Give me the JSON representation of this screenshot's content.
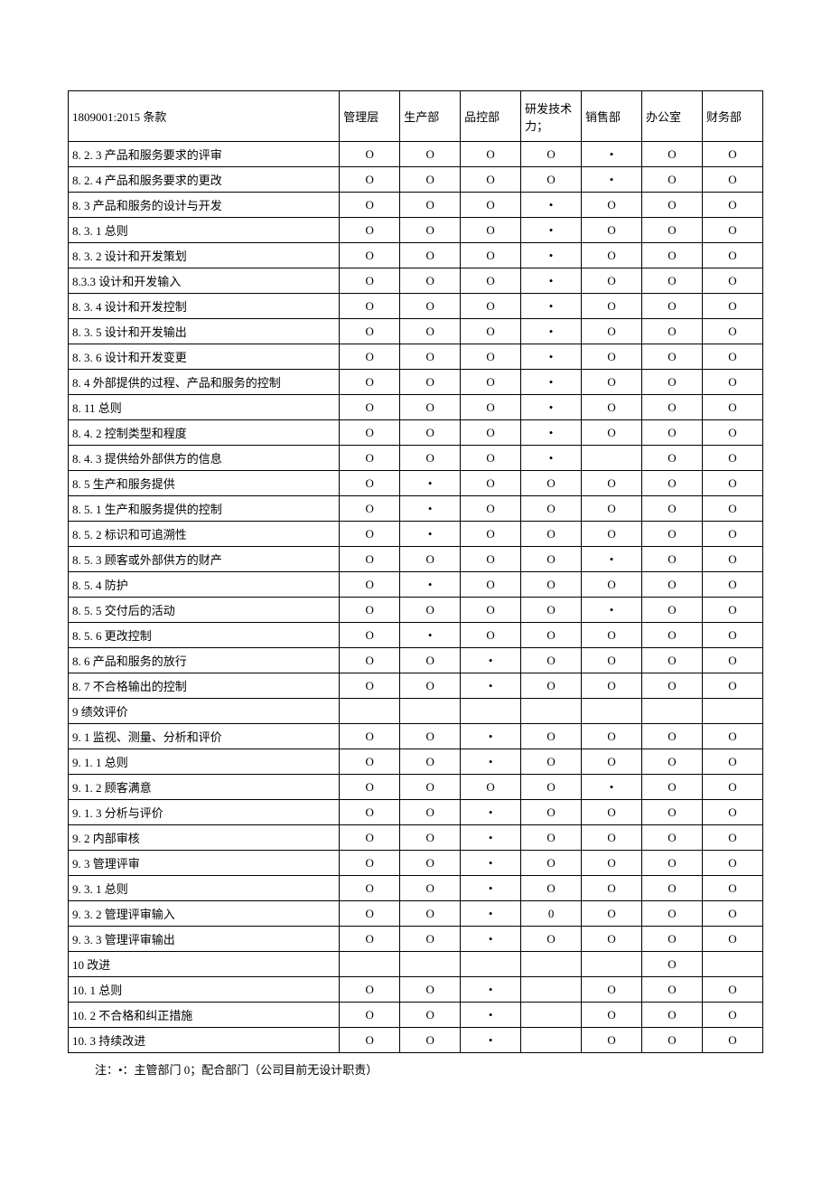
{
  "table": {
    "headers": [
      "1809001:2015 条款",
      "管理层",
      "生产部",
      "品控部",
      "研发技术力；",
      "销售部",
      "办公室",
      "财务部"
    ],
    "rows": [
      {
        "label": "8. 2. 3 产品和服务要求的评审",
        "cells": [
          "O",
          "O",
          "O",
          "O",
          "•",
          "O",
          "O"
        ]
      },
      {
        "label": "8. 2. 4 产品和服务要求的更改",
        "cells": [
          "O",
          "O",
          "O",
          "O",
          "•",
          "O",
          "O"
        ]
      },
      {
        "label": "8. 3 产品和服务的设计与开发",
        "cells": [
          "O",
          "O",
          "O",
          "•",
          "O",
          "O",
          "O"
        ]
      },
      {
        "label": "8. 3. 1 总则",
        "cells": [
          "O",
          "O",
          "O",
          "•",
          "O",
          "O",
          "O"
        ]
      },
      {
        "label": "8. 3. 2 设计和开发策划",
        "cells": [
          "O",
          "O",
          "O",
          "•",
          "O",
          "O",
          "O"
        ]
      },
      {
        "label": "8.3.3 设计和开发输入",
        "cells": [
          "O",
          "O",
          "O",
          "•",
          "O",
          "O",
          "O"
        ]
      },
      {
        "label": "8. 3. 4 设计和开发控制",
        "cells": [
          "O",
          "O",
          "O",
          "•",
          "O",
          "O",
          "O"
        ]
      },
      {
        "label": "8. 3. 5 设计和开发输出",
        "cells": [
          "O",
          "O",
          "O",
          "•",
          "O",
          "O",
          "O"
        ]
      },
      {
        "label": "8. 3. 6 设计和开发变更",
        "cells": [
          "O",
          "O",
          "O",
          "•",
          "O",
          "O",
          "O"
        ]
      },
      {
        "label": "8. 4 外部提供的过程、产品和服务的控制",
        "cells": [
          "O",
          "O",
          "O",
          "•",
          "O",
          "O",
          "O"
        ]
      },
      {
        "label": "8. 11 总则",
        "cells": [
          "O",
          "O",
          "O",
          "•",
          "O",
          "O",
          "O"
        ]
      },
      {
        "label": "8. 4. 2 控制类型和程度",
        "cells": [
          "O",
          "O",
          "O",
          "•",
          "O",
          "O",
          "O"
        ]
      },
      {
        "label": "8. 4. 3 提供给外部供方的信息",
        "cells": [
          "O",
          "O",
          "O",
          "•",
          "",
          "O",
          "O"
        ]
      },
      {
        "label": "8. 5 生产和服务提供",
        "cells": [
          "O",
          "•",
          "O",
          "O",
          "O",
          "O",
          "O"
        ]
      },
      {
        "label": "8. 5. 1 生产和服务提供的控制",
        "cells": [
          "O",
          "•",
          "O",
          "O",
          "O",
          "O",
          "O"
        ]
      },
      {
        "label": "8. 5. 2 标识和可追溯性",
        "cells": [
          "O",
          "•",
          "O",
          "O",
          "O",
          "O",
          "O"
        ]
      },
      {
        "label": "8. 5. 3 顾客或外部供方的财产",
        "cells": [
          "O",
          "O",
          "O",
          "O",
          "•",
          "O",
          "O"
        ]
      },
      {
        "label": "8. 5. 4 防护",
        "cells": [
          "O",
          "•",
          "O",
          "O",
          "O",
          "O",
          "O"
        ]
      },
      {
        "label": "8. 5. 5 交付后的活动",
        "cells": [
          "O",
          "O",
          "O",
          "O",
          "•",
          "O",
          "O"
        ]
      },
      {
        "label": "8. 5. 6 更改控制",
        "cells": [
          "O",
          "•",
          "O",
          "O",
          "O",
          "O",
          "O"
        ]
      },
      {
        "label": "8. 6 产品和服务的放行",
        "cells": [
          "O",
          "O",
          "•",
          "O",
          "O",
          "O",
          "O"
        ]
      },
      {
        "label": "8. 7 不合格输出的控制",
        "cells": [
          "O",
          "O",
          "•",
          "O",
          "O",
          "O",
          "O"
        ]
      },
      {
        "label": "9 绩效评价",
        "cells": [
          "",
          "",
          "",
          "",
          "",
          "",
          ""
        ]
      },
      {
        "label": "9. 1 监视、测量、分析和评价",
        "cells": [
          "O",
          "O",
          "•",
          "O",
          "O",
          "O",
          "O"
        ]
      },
      {
        "label": "9. 1. 1 总则",
        "cells": [
          "O",
          "O",
          "•",
          "O",
          "O",
          "O",
          "O"
        ]
      },
      {
        "label": "9. 1. 2 顾客满意",
        "cells": [
          "O",
          "O",
          "O",
          "O",
          "•",
          "O",
          "O"
        ]
      },
      {
        "label": "9. 1. 3 分析与评价",
        "cells": [
          "O",
          "O",
          "•",
          "O",
          "O",
          "O",
          "O"
        ]
      },
      {
        "label": "9. 2 内部审核",
        "cells": [
          "O",
          "O",
          "•",
          "O",
          "O",
          "O",
          "O"
        ]
      },
      {
        "label": "9. 3 管理评审",
        "cells": [
          "O",
          "O",
          "•",
          "O",
          "O",
          "O",
          "O"
        ]
      },
      {
        "label": "9. 3. 1 总则",
        "cells": [
          "O",
          "O",
          "•",
          "O",
          "O",
          "O",
          "O"
        ]
      },
      {
        "label": "9. 3. 2 管理评审输入",
        "cells": [
          "O",
          "O",
          "•",
          "0",
          "O",
          "O",
          "O"
        ]
      },
      {
        "label": "9. 3. 3 管理评审输出",
        "cells": [
          "O",
          "O",
          "•",
          "O",
          "O",
          "O",
          "O"
        ]
      },
      {
        "label": "10 改进",
        "cells": [
          "",
          "",
          "",
          "",
          "",
          "O",
          ""
        ]
      },
      {
        "label": "10. 1 总则",
        "cells": [
          "O",
          "O",
          "•",
          "",
          "O",
          "O",
          "O"
        ]
      },
      {
        "label": "10. 2 不合格和纠正措施",
        "cells": [
          "O",
          "O",
          "•",
          "",
          "O",
          "O",
          "O"
        ]
      },
      {
        "label": "10. 3 持续改进",
        "cells": [
          "O",
          "O",
          "•",
          "",
          "O",
          "O",
          "O"
        ]
      }
    ]
  },
  "footnote": "注：•：主管部门 0；配合部门（公司目前无设计职责）"
}
